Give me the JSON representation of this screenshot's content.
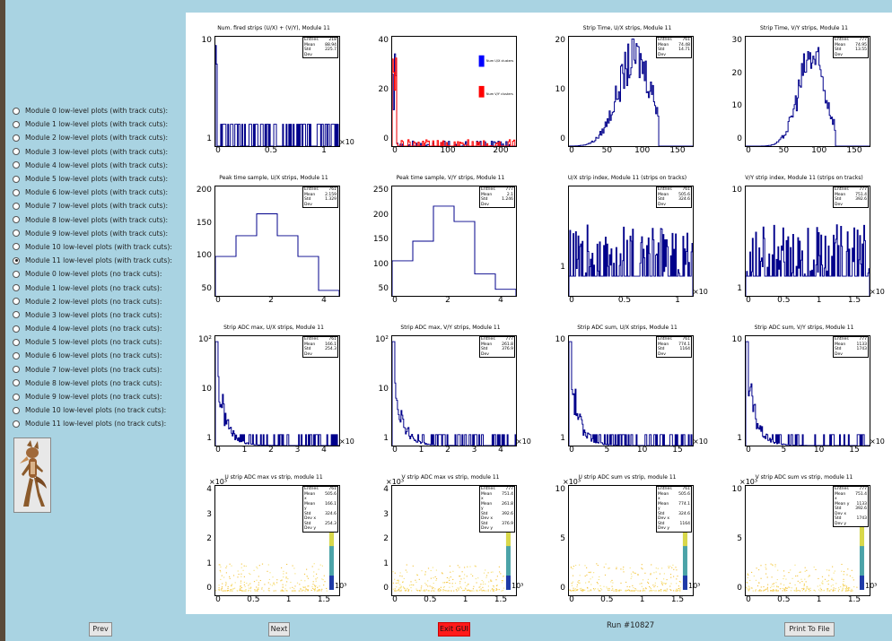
{
  "sidebar": {
    "options": [
      "Module 0 low-level plots (with track cuts):",
      "Module 1 low-level plots (with track cuts):",
      "Module 2 low-level plots (with track cuts):",
      "Module 3 low-level plots (with track cuts):",
      "Module 4 low-level plots (with track cuts):",
      "Module 5 low-level plots (with track cuts):",
      "Module 6 low-level plots (with track cuts):",
      "Module 7 low-level plots (with track cuts):",
      "Module 8 low-level plots (with track cuts):",
      "Module 9 low-level plots (with track cuts):",
      "Module 10 low-level plots (with track cuts):",
      "Module 11 low-level plots (with track cuts):",
      "Module 0 low-level plots (no track cuts):",
      "Module 1 low-level plots (no track cuts):",
      "Module 2 low-level plots (no track cuts):",
      "Module 3 low-level plots (no track cuts):",
      "Module 4 low-level plots (no track cuts):",
      "Module 5 low-level plots (no track cuts):",
      "Module 6 low-level plots (no track cuts):",
      "Module 7 low-level plots (no track cuts):",
      "Module 8 low-level plots (no track cuts):",
      "Module 9 low-level plots (no track cuts):",
      "Module 10 low-level plots (no track cuts):",
      "Module 11 low-level plots (no track cuts):"
    ],
    "selected_index": 11
  },
  "footer": {
    "prev_label": "Prev",
    "next_label": "Next",
    "exit_label": "Exit GUI",
    "run_label": "Run #10827",
    "print_label": "Print To File"
  },
  "colors": {
    "background": "#a9d3e2",
    "histogram": "#00008b",
    "second_series": "#ff0000",
    "exit": "#ff1a1a"
  },
  "plots": [
    {
      "title": "Num. fired strips (U/X) + (V/Y), Module 11",
      "stats": [
        [
          "Entries",
          "218"
        ],
        [
          "Mean",
          "88.94"
        ],
        [
          "Std Dev",
          "225.7"
        ]
      ],
      "yticks": [
        "10",
        "1"
      ],
      "xticks": [
        "0",
        "0.5",
        "1"
      ],
      "xexp": "×10"
    },
    {
      "title": "",
      "legend": [
        "Num U/X clusters",
        "Num V/Y clusters"
      ],
      "yticks": [
        "40",
        "20",
        "0"
      ],
      "xticks": [
        "0",
        "100",
        "200"
      ]
    },
    {
      "title": "Strip Time, U/X strips, Module 11",
      "stats": [
        [
          "Entries",
          "761"
        ],
        [
          "Mean",
          "74.48"
        ],
        [
          "Std Dev",
          "14.71"
        ]
      ],
      "yticks": [
        "20",
        "10",
        "0"
      ],
      "xticks": [
        "0",
        "50",
        "100",
        "150"
      ]
    },
    {
      "title": "Strip Time, V/Y strips, Module 11",
      "stats": [
        [
          "Entries",
          "777"
        ],
        [
          "Mean",
          "74.95"
        ],
        [
          "Std Dev",
          "13.55"
        ]
      ],
      "yticks": [
        "30",
        "20",
        "10",
        "0"
      ],
      "xticks": [
        "0",
        "50",
        "100",
        "150"
      ]
    },
    {
      "title": "Peak time sample, U/X strips, Module 11",
      "stats": [
        [
          "Entries",
          "761"
        ],
        [
          "Mean",
          "2.159"
        ],
        [
          "Std Dev",
          "1.329"
        ]
      ],
      "yticks": [
        "200",
        "150",
        "100",
        "50"
      ],
      "xticks": [
        "0",
        "2",
        "4"
      ]
    },
    {
      "title": "Peak time sample, V/Y strips, Module 11",
      "stats": [
        [
          "Entries",
          "777"
        ],
        [
          "Mean",
          "2.1"
        ],
        [
          "Std Dev",
          "1.246"
        ]
      ],
      "yticks": [
        "250",
        "200",
        "150",
        "100",
        "50"
      ],
      "xticks": [
        "0",
        "2",
        "4"
      ]
    },
    {
      "title": "U/X strip index, Module 11 (strips on tracks)",
      "stats": [
        [
          "Entries",
          "761"
        ],
        [
          "Mean",
          "505.6"
        ],
        [
          "Std Dev",
          "324.6"
        ]
      ],
      "yticks": [
        "1"
      ],
      "xticks": [
        "0",
        "0.5",
        "1"
      ],
      "xexp": "×10"
    },
    {
      "title": "V/Y strip index, Module 11 (strips on tracks)",
      "stats": [
        [
          "Entries",
          "777"
        ],
        [
          "Mean",
          "751.4"
        ],
        [
          "Std Dev",
          "392.6"
        ]
      ],
      "yticks": [
        "10",
        "1"
      ],
      "xticks": [
        "0",
        "0.5",
        "1",
        "1.5"
      ],
      "xexp": "×10"
    },
    {
      "title": "Strip ADC max, U/X strips, Module 11",
      "stats": [
        [
          "Entries",
          "761"
        ],
        [
          "Mean",
          "166.1"
        ],
        [
          "Std Dev",
          "254.3"
        ]
      ],
      "yticks": [
        "10²",
        "10",
        "1"
      ],
      "xticks": [
        "0",
        "1",
        "2",
        "3",
        "4"
      ],
      "xexp": "×10"
    },
    {
      "title": "Strip ADC max, V/Y strips, Module 11",
      "stats": [
        [
          "Entries",
          "777"
        ],
        [
          "Mean",
          "261.8"
        ],
        [
          "Std Dev",
          "376.9"
        ]
      ],
      "yticks": [
        "10²",
        "10",
        "1"
      ],
      "xticks": [
        "0",
        "1",
        "2",
        "3",
        "4"
      ],
      "xexp": "×10"
    },
    {
      "title": "Strip ADC sum, U/X strips, Module 11",
      "stats": [
        [
          "Entries",
          "761"
        ],
        [
          "Mean",
          "774.1"
        ],
        [
          "Std Dev",
          "1164"
        ]
      ],
      "yticks": [
        "10",
        "1"
      ],
      "xticks": [
        "0",
        "5",
        "10",
        "15"
      ],
      "xexp": "×10"
    },
    {
      "title": "Strip ADC sum, V/Y strips, Module 11",
      "stats": [
        [
          "Entries",
          "777"
        ],
        [
          "Mean",
          "1133"
        ],
        [
          "Std Dev",
          "1743"
        ]
      ],
      "yticks": [
        "10",
        "1"
      ],
      "xticks": [
        "0",
        "5",
        "10",
        "15"
      ],
      "xexp": "×10"
    },
    {
      "title": "U strip ADC max vs strip, module 11",
      "stats": [
        [
          "Entries",
          "761"
        ],
        [
          "Mean x",
          "505.6"
        ],
        [
          "Mean y",
          "166.1"
        ],
        [
          "Std Dev x",
          "324.6"
        ],
        [
          "Std Dev y",
          "254.3"
        ]
      ],
      "yticks": [
        "4",
        "3",
        "2",
        "1",
        "0"
      ],
      "xticks": [
        "0",
        "0.5",
        "1",
        "1.5"
      ],
      "yexp": "×10³",
      "zexp": "10³"
    },
    {
      "title": "V strip ADC max vs strip, module 11",
      "stats": [
        [
          "Entries",
          "777"
        ],
        [
          "Mean x",
          "751.4"
        ],
        [
          "Mean y",
          "261.8"
        ],
        [
          "Std Dev x",
          "392.6"
        ],
        [
          "Std Dev y",
          "376.9"
        ]
      ],
      "yticks": [
        "4",
        "3",
        "2",
        "1",
        "0"
      ],
      "xticks": [
        "0",
        "0.5",
        "1",
        "1.5"
      ],
      "yexp": "×10³",
      "zexp": "10³"
    },
    {
      "title": "U strip ADC sum vs strip, module 11",
      "stats": [
        [
          "Entries",
          "761"
        ],
        [
          "Mean x",
          "505.6"
        ],
        [
          "Mean y",
          "774.1"
        ],
        [
          "Std Dev x",
          "324.6"
        ],
        [
          "Std Dev y",
          "1164"
        ]
      ],
      "yticks": [
        "10",
        "5",
        "0"
      ],
      "xticks": [
        "0",
        "0.5",
        "1",
        "1.5"
      ],
      "yexp": "×10³",
      "zexp": "10³"
    },
    {
      "title": "V strip ADC sum vs strip, module 11",
      "stats": [
        [
          "Entries",
          "777"
        ],
        [
          "Mean x",
          "751.4"
        ],
        [
          "Mean y",
          "1133"
        ],
        [
          "Std Dev x",
          "392.6"
        ],
        [
          "Std Dev y",
          "1743"
        ]
      ],
      "yticks": [
        "10",
        "5",
        "0"
      ],
      "xticks": [
        "0",
        "0.5",
        "1",
        "1.5"
      ],
      "yexp": "×10³",
      "zexp": "10³"
    }
  ]
}
